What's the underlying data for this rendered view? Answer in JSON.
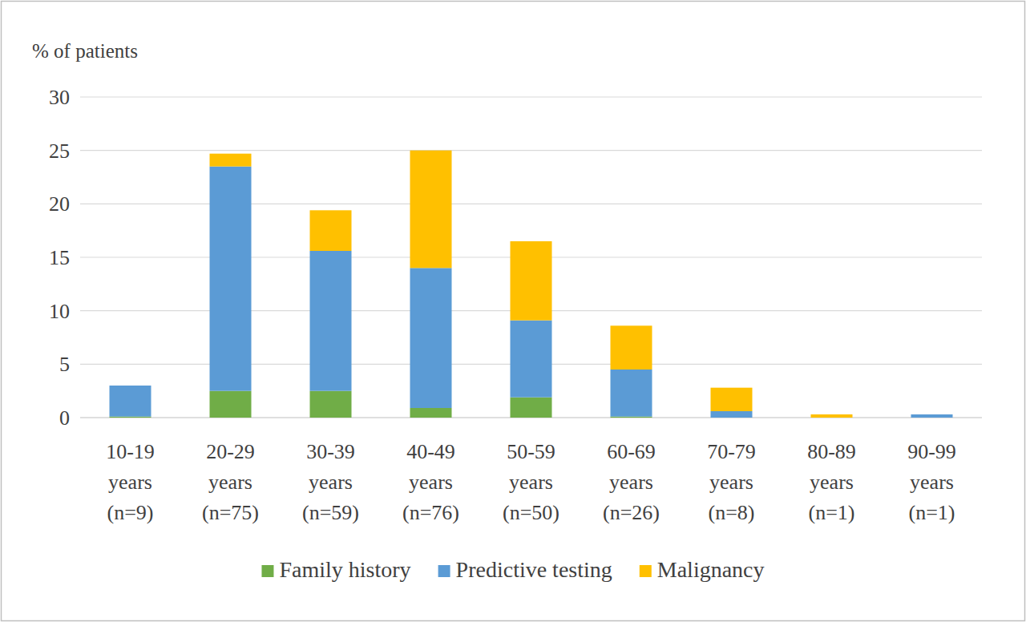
{
  "chart_data": {
    "type": "bar",
    "stacked": true,
    "ylabel": "% of patients",
    "categories": [
      "10-19 years (n=9)",
      "20-29 years (n=75)",
      "30-39 years (n=59)",
      "40-49 years (n=76)",
      "50-59 years (n=50)",
      "60-69 years (n=26)",
      "70-79 years (n=8)",
      "80-89 years (n=1)",
      "90-99 years (n=1)"
    ],
    "series": [
      {
        "name": "Family history",
        "color": "#70ad47",
        "values": [
          0.1,
          2.5,
          2.5,
          0.9,
          1.9,
          0.1,
          0,
          0,
          0
        ]
      },
      {
        "name": "Predictive testing",
        "color": "#5b9bd5",
        "values": [
          2.9,
          21.0,
          13.1,
          13.1,
          7.2,
          4.4,
          0.6,
          0,
          0.3
        ]
      },
      {
        "name": "Malignancy",
        "color": "#ffc000",
        "values": [
          0,
          1.2,
          3.8,
          11.0,
          7.4,
          4.1,
          2.2,
          0.3,
          0
        ]
      }
    ],
    "ylim": [
      0,
      30
    ],
    "yticks": [
      0,
      5,
      10,
      15,
      20,
      25,
      30
    ],
    "grid": true,
    "legend": "bottom"
  }
}
